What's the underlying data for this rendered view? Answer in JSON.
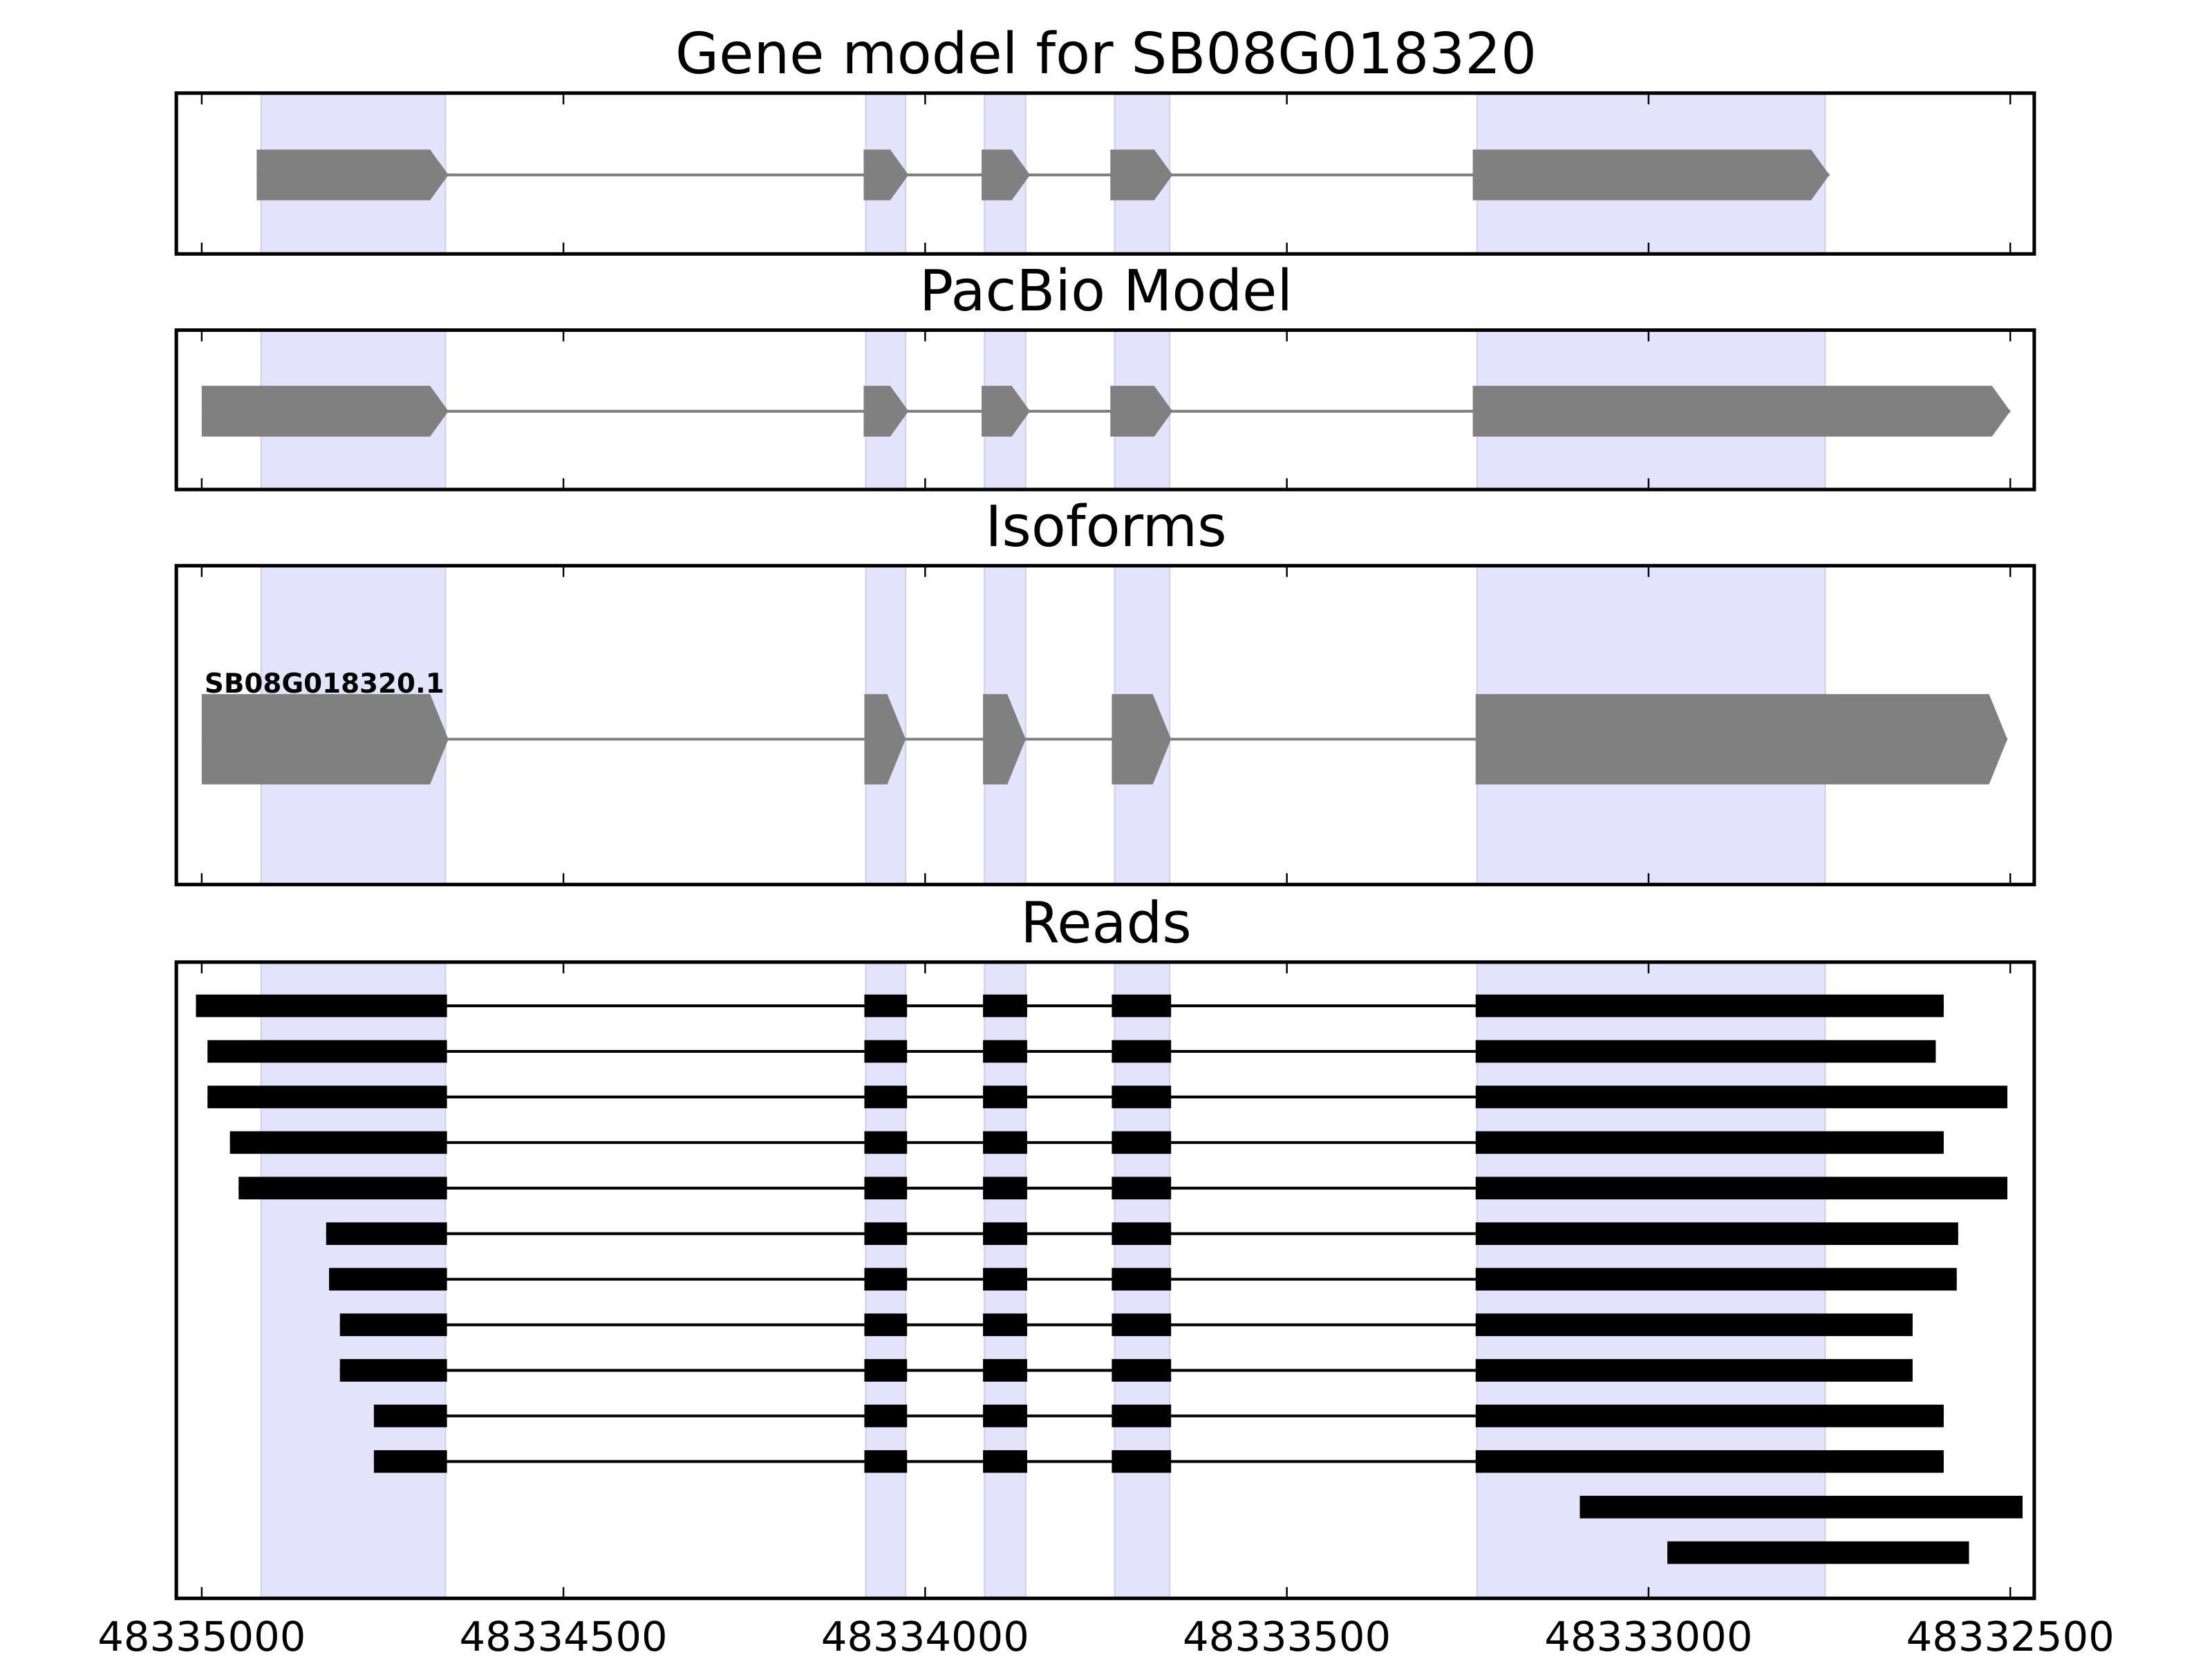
{
  "chart_data": {
    "type": "gene-track",
    "xlim": [
      48335000,
      48332500
    ],
    "x_reversed": true,
    "xticks": [
      48335000,
      48334500,
      48334000,
      48333500,
      48333000,
      48332500
    ],
    "xtick_labels": [
      "48335000",
      "48334500",
      "48334000",
      "48333500",
      "48333000",
      "48332500"
    ],
    "highlight_color": "#e3e3fc",
    "highlight_regions": [
      [
        48334918,
        48334663
      ],
      [
        48334082,
        48334027
      ],
      [
        48333918,
        48333861
      ],
      [
        48333738,
        48333662
      ],
      [
        48333237,
        48332756
      ]
    ],
    "panels": [
      {
        "title": "Gene model for SB08G018320",
        "style": "arrow",
        "color": "#808080",
        "models": [
          {
            "label": "",
            "exons": [
              [
                48334924,
                48334659
              ],
              [
                48334085,
                48334023
              ],
              [
                48333922,
                48333855
              ],
              [
                48333744,
                48333658
              ],
              [
                48333243,
                48332750
              ]
            ]
          }
        ]
      },
      {
        "title": "PacBio Model",
        "style": "arrow",
        "color": "#808080",
        "models": [
          {
            "label": "",
            "exons": [
              [
                48335000,
                48334659
              ],
              [
                48334085,
                48334023
              ],
              [
                48333922,
                48333855
              ],
              [
                48333744,
                48333658
              ],
              [
                48333243,
                48332500
              ]
            ]
          }
        ]
      },
      {
        "title": "Isoforms",
        "style": "arrow",
        "color": "#808080",
        "models": [
          {
            "label": "SB08G018320.1",
            "exons": [
              [
                48335000,
                48334659
              ],
              [
                48334084,
                48334027
              ],
              [
                48333920,
                48333861
              ],
              [
                48333742,
                48333660
              ],
              [
                48333239,
                48332504
              ]
            ]
          }
        ]
      },
      {
        "title": "Reads",
        "style": "block",
        "color": "#000000",
        "models": [
          {
            "exons": [
              [
                48335008,
                48334661
              ],
              [
                48334084,
                48334025
              ],
              [
                48333920,
                48333859
              ],
              [
                48333742,
                48333660
              ],
              [
                48333239,
                48332592
              ]
            ]
          },
          {
            "exons": [
              [
                48334992,
                48334661
              ],
              [
                48334084,
                48334025
              ],
              [
                48333920,
                48333859
              ],
              [
                48333742,
                48333660
              ],
              [
                48333239,
                48332603
              ]
            ]
          },
          {
            "exons": [
              [
                48334992,
                48334661
              ],
              [
                48334084,
                48334025
              ],
              [
                48333920,
                48333859
              ],
              [
                48333742,
                48333660
              ],
              [
                48333239,
                48332504
              ]
            ]
          },
          {
            "exons": [
              [
                48334961,
                48334661
              ],
              [
                48334084,
                48334025
              ],
              [
                48333920,
                48333859
              ],
              [
                48333742,
                48333660
              ],
              [
                48333239,
                48332592
              ]
            ]
          },
          {
            "exons": [
              [
                48334949,
                48334661
              ],
              [
                48334084,
                48334025
              ],
              [
                48333920,
                48333859
              ],
              [
                48333742,
                48333660
              ],
              [
                48333239,
                48332504
              ]
            ]
          },
          {
            "exons": [
              [
                48334828,
                48334661
              ],
              [
                48334084,
                48334025
              ],
              [
                48333920,
                48333859
              ],
              [
                48333742,
                48333660
              ],
              [
                48333239,
                48332572
              ]
            ]
          },
          {
            "exons": [
              [
                48334824,
                48334661
              ],
              [
                48334084,
                48334025
              ],
              [
                48333920,
                48333859
              ],
              [
                48333742,
                48333660
              ],
              [
                48333239,
                48332574
              ]
            ]
          },
          {
            "exons": [
              [
                48334809,
                48334661
              ],
              [
                48334084,
                48334025
              ],
              [
                48333920,
                48333859
              ],
              [
                48333742,
                48333660
              ],
              [
                48333239,
                48332635
              ]
            ]
          },
          {
            "exons": [
              [
                48334809,
                48334661
              ],
              [
                48334084,
                48334025
              ],
              [
                48333920,
                48333859
              ],
              [
                48333742,
                48333660
              ],
              [
                48333239,
                48332635
              ]
            ]
          },
          {
            "exons": [
              [
                48334762,
                48334661
              ],
              [
                48334084,
                48334025
              ],
              [
                48333920,
                48333859
              ],
              [
                48333742,
                48333660
              ],
              [
                48333239,
                48332592
              ]
            ]
          },
          {
            "exons": [
              [
                48334762,
                48334661
              ],
              [
                48334084,
                48334025
              ],
              [
                48333920,
                48333859
              ],
              [
                48333742,
                48333660
              ],
              [
                48333239,
                48332592
              ]
            ]
          },
          {
            "exons": [
              [
                48333095,
                48332483
              ]
            ]
          },
          {
            "exons": [
              [
                48332974,
                48332557
              ]
            ]
          }
        ]
      }
    ]
  }
}
